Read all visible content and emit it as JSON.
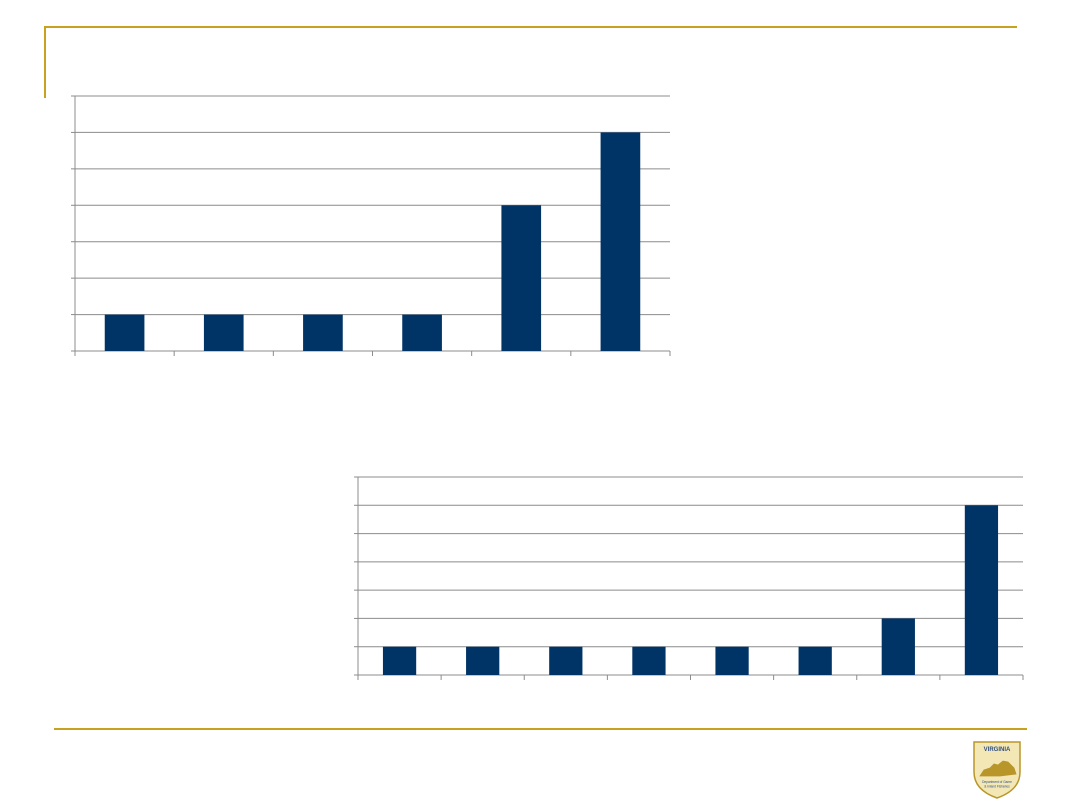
{
  "colors": {
    "accent": "#c8a21e",
    "bar": "#003366",
    "grid": "#8c8c8c",
    "axis": "#8c8c8c",
    "logo_fill": "#f3e7b6",
    "logo_stroke": "#b8962a",
    "logo_text": "#2f4f7f"
  },
  "logo": {
    "top_text": "VIRGINIA",
    "line1": "Department of Game",
    "line2": "& Inland Fisheries"
  },
  "chart_data": [
    {
      "type": "bar",
      "categories": [
        "",
        "",
        "",
        "",
        "",
        ""
      ],
      "values": [
        1,
        1,
        1,
        1,
        4,
        6
      ],
      "ylim": [
        0,
        7
      ],
      "grid": true,
      "legend": "none"
    },
    {
      "type": "bar",
      "categories": [
        "",
        "",
        "",
        "",
        "",
        "",
        "",
        ""
      ],
      "values": [
        1,
        1,
        1,
        1,
        1,
        1,
        2,
        6
      ],
      "ylim": [
        0,
        7
      ],
      "grid": true,
      "legend": "none"
    }
  ]
}
